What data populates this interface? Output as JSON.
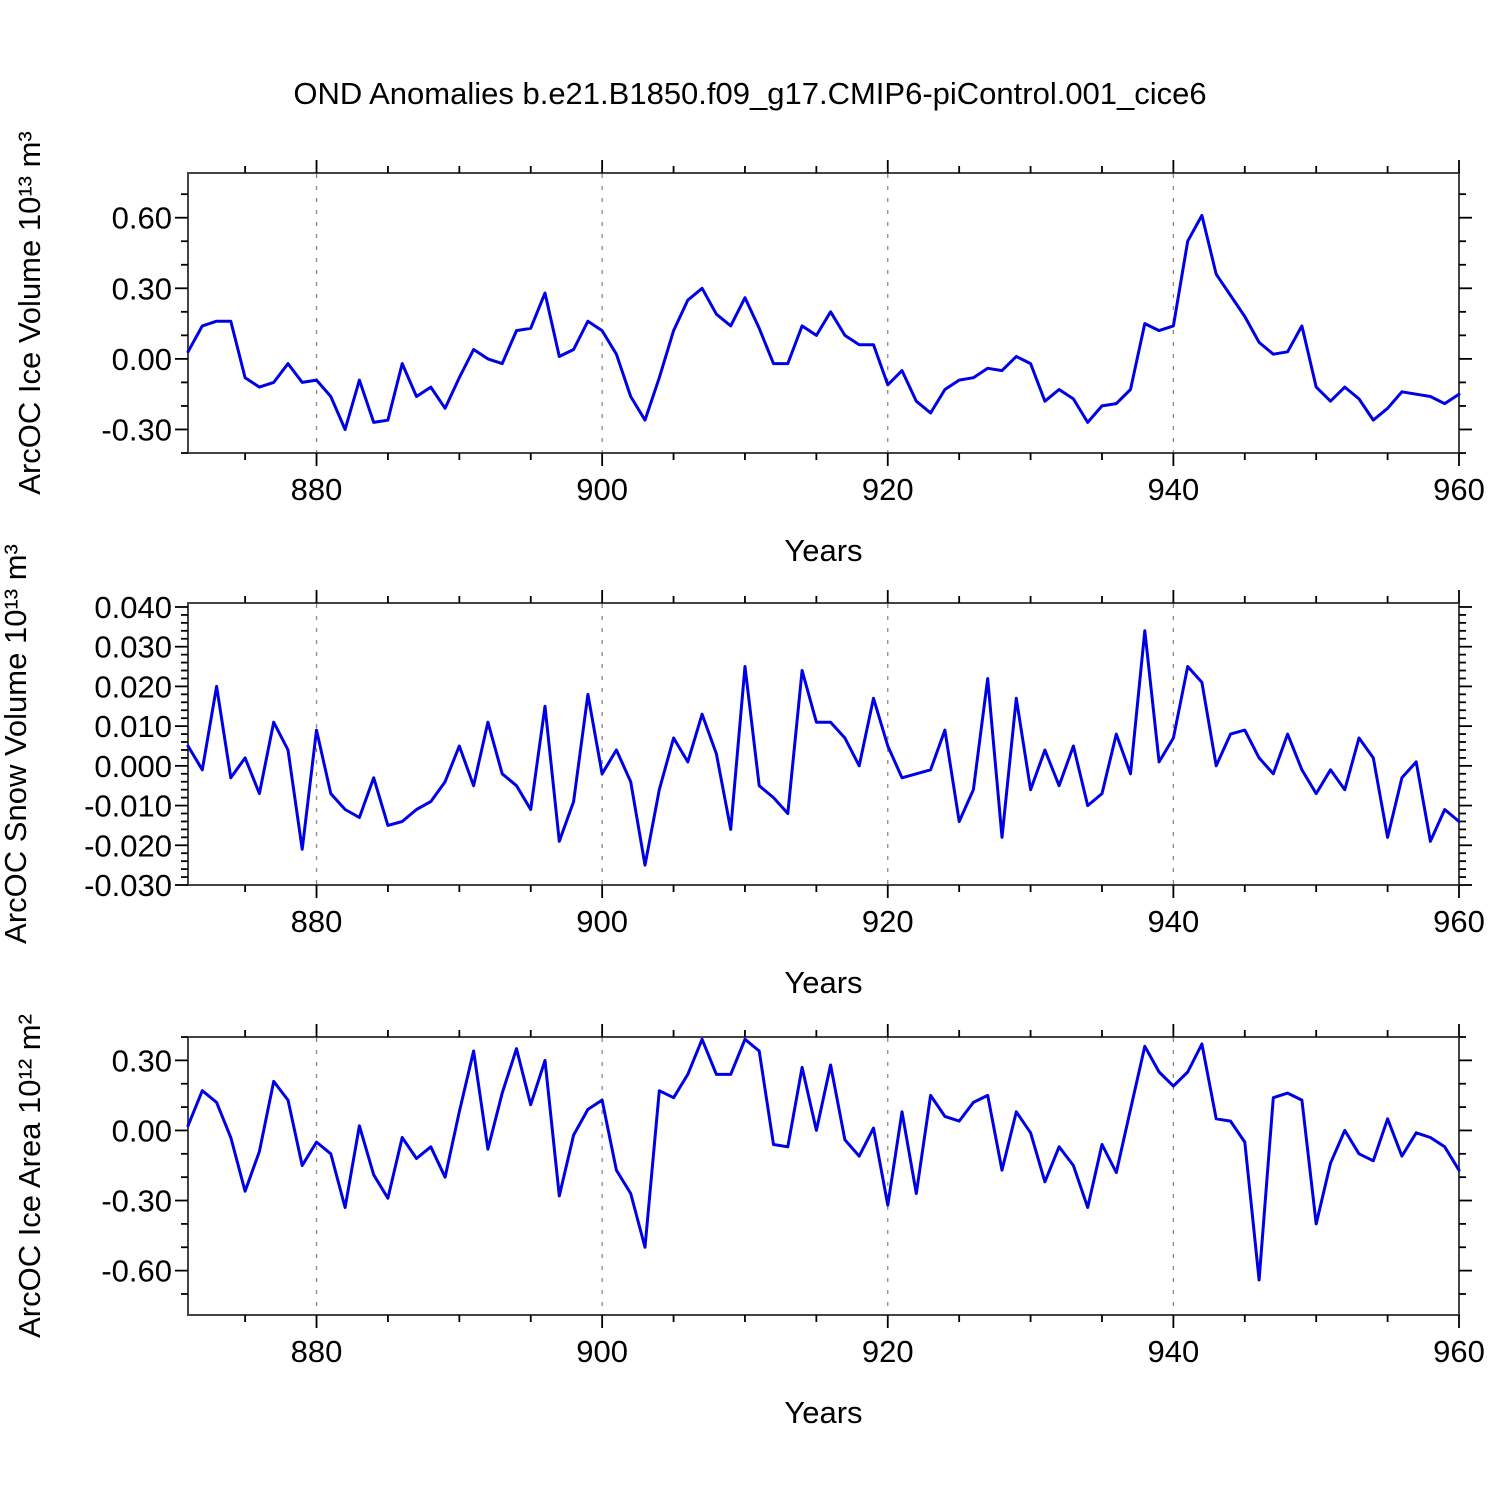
{
  "title": "OND Anomalies b.e21.B1850.f09_g17.CMIP6-piControl.001_cice6",
  "styles": {
    "line_color": "#0000E6",
    "grid_color": "#888888",
    "frame_color": "#444444",
    "tick_color": "#000000",
    "text_color": "#000000"
  },
  "chart_data": [
    {
      "type": "line",
      "name": "arcoc-ice-volume",
      "ylabel": "ArcOC Ice Volume 10¹³ m³",
      "xlabel": "Years",
      "legend": "none",
      "grid": "vertical-dashed",
      "x_start": 871,
      "x_step": 1,
      "xlim": [
        871,
        960
      ],
      "ylim": [
        -0.4,
        0.79
      ],
      "yticks": [
        {
          "v": 0.6,
          "label": "0.60"
        },
        {
          "v": 0.3,
          "label": "0.30"
        },
        {
          "v": 0.0,
          "label": "0.00"
        },
        {
          "v": -0.3,
          "label": "-0.30"
        }
      ],
      "ytick_minor_step": 0.1,
      "xticks": [
        {
          "v": 880,
          "label": "880"
        },
        {
          "v": 900,
          "label": "900"
        },
        {
          "v": 920,
          "label": "920"
        },
        {
          "v": 940,
          "label": "940"
        },
        {
          "v": 960,
          "label": "960"
        }
      ],
      "xtick_minor_step": 5,
      "grid_x": [
        880,
        900,
        920,
        940
      ],
      "values": [
        0.03,
        0.14,
        0.16,
        0.16,
        -0.08,
        -0.12,
        -0.1,
        -0.02,
        -0.1,
        -0.09,
        -0.16,
        -0.3,
        -0.09,
        -0.27,
        -0.26,
        -0.02,
        -0.16,
        -0.12,
        -0.21,
        -0.08,
        0.04,
        0.0,
        -0.02,
        0.12,
        0.13,
        0.28,
        0.01,
        0.04,
        0.16,
        0.12,
        0.02,
        -0.16,
        -0.26,
        -0.08,
        0.12,
        0.25,
        0.3,
        0.19,
        0.14,
        0.26,
        0.13,
        -0.02,
        -0.02,
        0.14,
        0.1,
        0.2,
        0.1,
        0.06,
        0.06,
        -0.11,
        -0.05,
        -0.18,
        -0.23,
        -0.13,
        -0.09,
        -0.08,
        -0.04,
        -0.05,
        0.01,
        -0.02,
        -0.18,
        -0.13,
        -0.17,
        -0.27,
        -0.2,
        -0.19,
        -0.13,
        0.15,
        0.12,
        0.14,
        0.5,
        0.61,
        0.36,
        0.27,
        0.18,
        0.07,
        0.02,
        0.03,
        0.14,
        -0.12,
        -0.18,
        -0.12,
        -0.17,
        -0.26,
        -0.21,
        -0.14,
        -0.15,
        -0.16,
        -0.19,
        -0.15
      ]
    },
    {
      "type": "line",
      "name": "arcoc-snow-volume",
      "ylabel": "ArcOC Snow Volume 10¹³ m³",
      "xlabel": "Years",
      "legend": "none",
      "grid": "vertical-dashed",
      "x_start": 871,
      "x_step": 1,
      "xlim": [
        871,
        960
      ],
      "ylim": [
        -0.03,
        0.041
      ],
      "yticks": [
        {
          "v": 0.04,
          "label": "0.040"
        },
        {
          "v": 0.03,
          "label": "0.030"
        },
        {
          "v": 0.02,
          "label": "0.020"
        },
        {
          "v": 0.01,
          "label": "0.010"
        },
        {
          "v": 0.0,
          "label": "0.000"
        },
        {
          "v": -0.01,
          "label": "-0.010"
        },
        {
          "v": -0.02,
          "label": "-0.020"
        },
        {
          "v": -0.03,
          "label": "-0.030"
        }
      ],
      "ytick_minor_step": 0.002,
      "xticks": [
        {
          "v": 880,
          "label": "880"
        },
        {
          "v": 900,
          "label": "900"
        },
        {
          "v": 920,
          "label": "920"
        },
        {
          "v": 940,
          "label": "940"
        },
        {
          "v": 960,
          "label": "960"
        }
      ],
      "xtick_minor_step": 5,
      "grid_x": [
        880,
        900,
        920,
        940
      ],
      "values": [
        0.005,
        -0.001,
        0.02,
        -0.003,
        0.002,
        -0.007,
        0.011,
        0.004,
        -0.021,
        0.009,
        -0.007,
        -0.011,
        -0.013,
        -0.003,
        -0.015,
        -0.014,
        -0.011,
        -0.009,
        -0.004,
        0.005,
        -0.005,
        0.011,
        -0.002,
        -0.005,
        -0.011,
        0.015,
        -0.019,
        -0.009,
        0.018,
        -0.002,
        0.004,
        -0.004,
        -0.025,
        -0.006,
        0.007,
        0.001,
        0.013,
        0.003,
        -0.016,
        0.025,
        -0.005,
        -0.008,
        -0.012,
        0.024,
        0.011,
        0.011,
        0.007,
        0.0,
        0.017,
        0.005,
        -0.003,
        -0.002,
        -0.001,
        0.009,
        -0.014,
        -0.006,
        0.022,
        -0.018,
        0.017,
        -0.006,
        0.004,
        -0.005,
        0.005,
        -0.01,
        -0.007,
        0.008,
        -0.002,
        0.034,
        0.001,
        0.007,
        0.025,
        0.021,
        0.0,
        0.008,
        0.009,
        0.002,
        -0.002,
        0.008,
        -0.001,
        -0.007,
        -0.001,
        -0.006,
        0.007,
        0.002,
        -0.018,
        -0.003,
        0.001,
        -0.019,
        -0.011,
        -0.014
      ]
    },
    {
      "type": "line",
      "name": "arcoc-ice-area",
      "ylabel": "ArcOC Ice Area 10¹² m²",
      "xlabel": "Years",
      "legend": "none",
      "grid": "vertical-dashed",
      "x_start": 871,
      "x_step": 1,
      "xlim": [
        871,
        960
      ],
      "ylim": [
        -0.79,
        0.4
      ],
      "yticks": [
        {
          "v": 0.3,
          "label": "0.30"
        },
        {
          "v": 0.0,
          "label": "0.00"
        },
        {
          "v": -0.3,
          "label": "-0.30"
        },
        {
          "v": -0.6,
          "label": "-0.60"
        }
      ],
      "ytick_minor_step": 0.1,
      "xticks": [
        {
          "v": 880,
          "label": "880"
        },
        {
          "v": 900,
          "label": "900"
        },
        {
          "v": 920,
          "label": "920"
        },
        {
          "v": 940,
          "label": "940"
        },
        {
          "v": 960,
          "label": "960"
        }
      ],
      "xtick_minor_step": 5,
      "grid_x": [
        880,
        900,
        920,
        940
      ],
      "values": [
        0.02,
        0.17,
        0.12,
        -0.03,
        -0.26,
        -0.09,
        0.21,
        0.13,
        -0.15,
        -0.05,
        -0.1,
        -0.33,
        0.02,
        -0.19,
        -0.29,
        -0.03,
        -0.12,
        -0.07,
        -0.2,
        0.08,
        0.34,
        -0.08,
        0.16,
        0.35,
        0.11,
        0.3,
        -0.28,
        -0.02,
        0.09,
        0.13,
        -0.17,
        -0.27,
        -0.5,
        0.17,
        0.14,
        0.24,
        0.39,
        0.24,
        0.24,
        0.39,
        0.34,
        -0.06,
        -0.07,
        0.27,
        0.0,
        0.28,
        -0.04,
        -0.11,
        0.01,
        -0.32,
        0.08,
        -0.27,
        0.15,
        0.06,
        0.04,
        0.12,
        0.15,
        -0.17,
        0.08,
        -0.01,
        -0.22,
        -0.07,
        -0.15,
        -0.33,
        -0.06,
        -0.18,
        0.09,
        0.36,
        0.25,
        0.19,
        0.25,
        0.37,
        0.05,
        0.04,
        -0.05,
        -0.64,
        0.14,
        0.16,
        0.13,
        -0.4,
        -0.14,
        0.0,
        -0.1,
        -0.13,
        0.05,
        -0.11,
        -0.01,
        -0.03,
        -0.07,
        -0.17
      ]
    }
  ]
}
